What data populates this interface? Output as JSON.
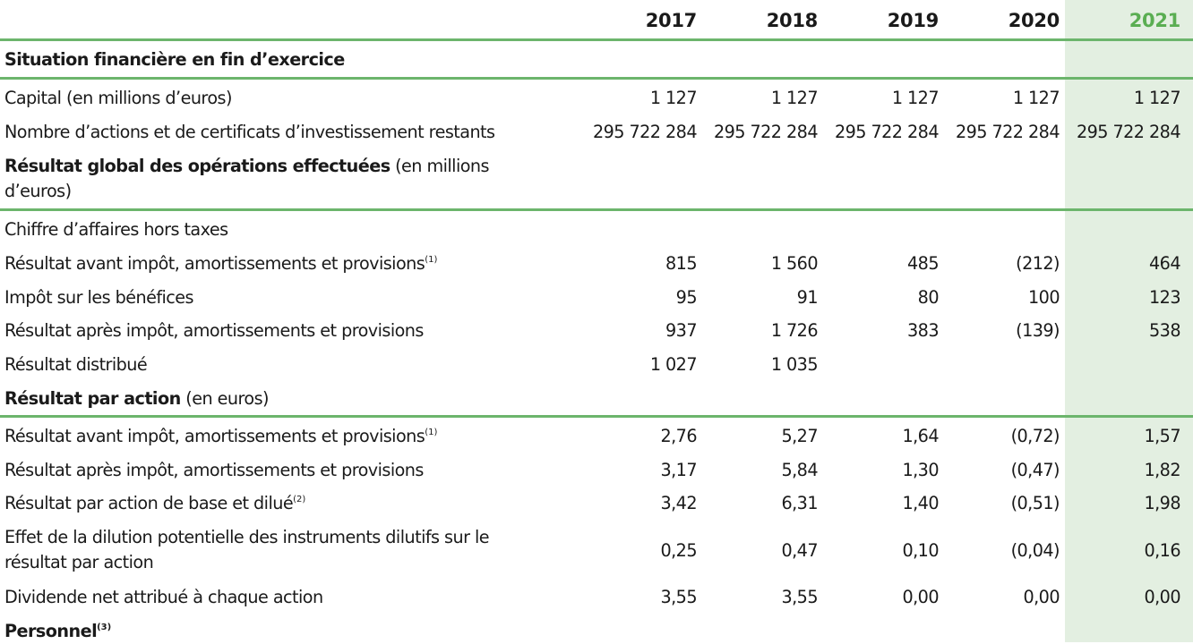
{
  "years": [
    "2017",
    "2018",
    "2019",
    "2020",
    "2021"
  ],
  "sections": {
    "situation": "Situation financière en fin d’exercice",
    "resultat_global_bold": "Résultat global des opérations effectuées",
    "resultat_global_rest": " (en millions d’euros)",
    "resultat_action_bold": "Résultat par action",
    "resultat_action_rest": " (en euros)",
    "personnel": "Personnel",
    "personnel_note": "(3)"
  },
  "rows": [
    {
      "label": "Capital (en millions d’euros)",
      "note": "",
      "values": [
        "1 127",
        "1 127",
        "1 127",
        "1 127",
        "1 127"
      ]
    },
    {
      "label": "Nombre d’actions et de certificats d’investissement restants",
      "note": "",
      "values": [
        "295 722 284",
        "295 722 284",
        "295 722 284",
        "295 722 284",
        "295 722 284"
      ]
    },
    {
      "label": "Chiffre d’affaires hors taxes",
      "note": "",
      "values": [
        "",
        "",
        "",
        "",
        ""
      ]
    },
    {
      "label": "Résultat avant impôt, amortissements et provisions",
      "note": "(1)",
      "values": [
        "815",
        "1 560",
        "485",
        "(212)",
        "464"
      ]
    },
    {
      "label": "Impôt sur les bénéfices",
      "note": "",
      "values": [
        "95",
        "91",
        "80",
        "100",
        "123"
      ]
    },
    {
      "label": "Résultat après impôt, amortissements et provisions",
      "note": "",
      "values": [
        "937",
        "1 726",
        "383",
        "(139)",
        "538"
      ]
    },
    {
      "label": "Résultat distribué",
      "note": "",
      "values": [
        "1 027",
        "1 035",
        "",
        "",
        ""
      ]
    },
    {
      "label": "Résultat avant impôt, amortissements et provisions",
      "note": "(1)",
      "values": [
        "2,76",
        "5,27",
        "1,64",
        "(0,72)",
        "1,57"
      ]
    },
    {
      "label": "Résultat après impôt, amortissements et provisions",
      "note": "",
      "values": [
        "3,17",
        "5,84",
        "1,30",
        "(0,47)",
        "1,82"
      ]
    },
    {
      "label": "Résultat par action de base et dilué",
      "note": "(2)",
      "values": [
        "3,42",
        "6,31",
        "1,40",
        "(0,51)",
        "1,98"
      ]
    },
    {
      "label": "Effet de la dilution potentielle des instruments dilutifs sur le résultat par action",
      "note": "",
      "values": [
        "0,25",
        "0,47",
        "0,10",
        "(0,04)",
        "0,16"
      ]
    },
    {
      "label": "Dividende net attribué à chaque action",
      "note": "",
      "values": [
        "3,55",
        "3,55",
        "0,00",
        "0,00",
        "0,00"
      ]
    }
  ]
}
